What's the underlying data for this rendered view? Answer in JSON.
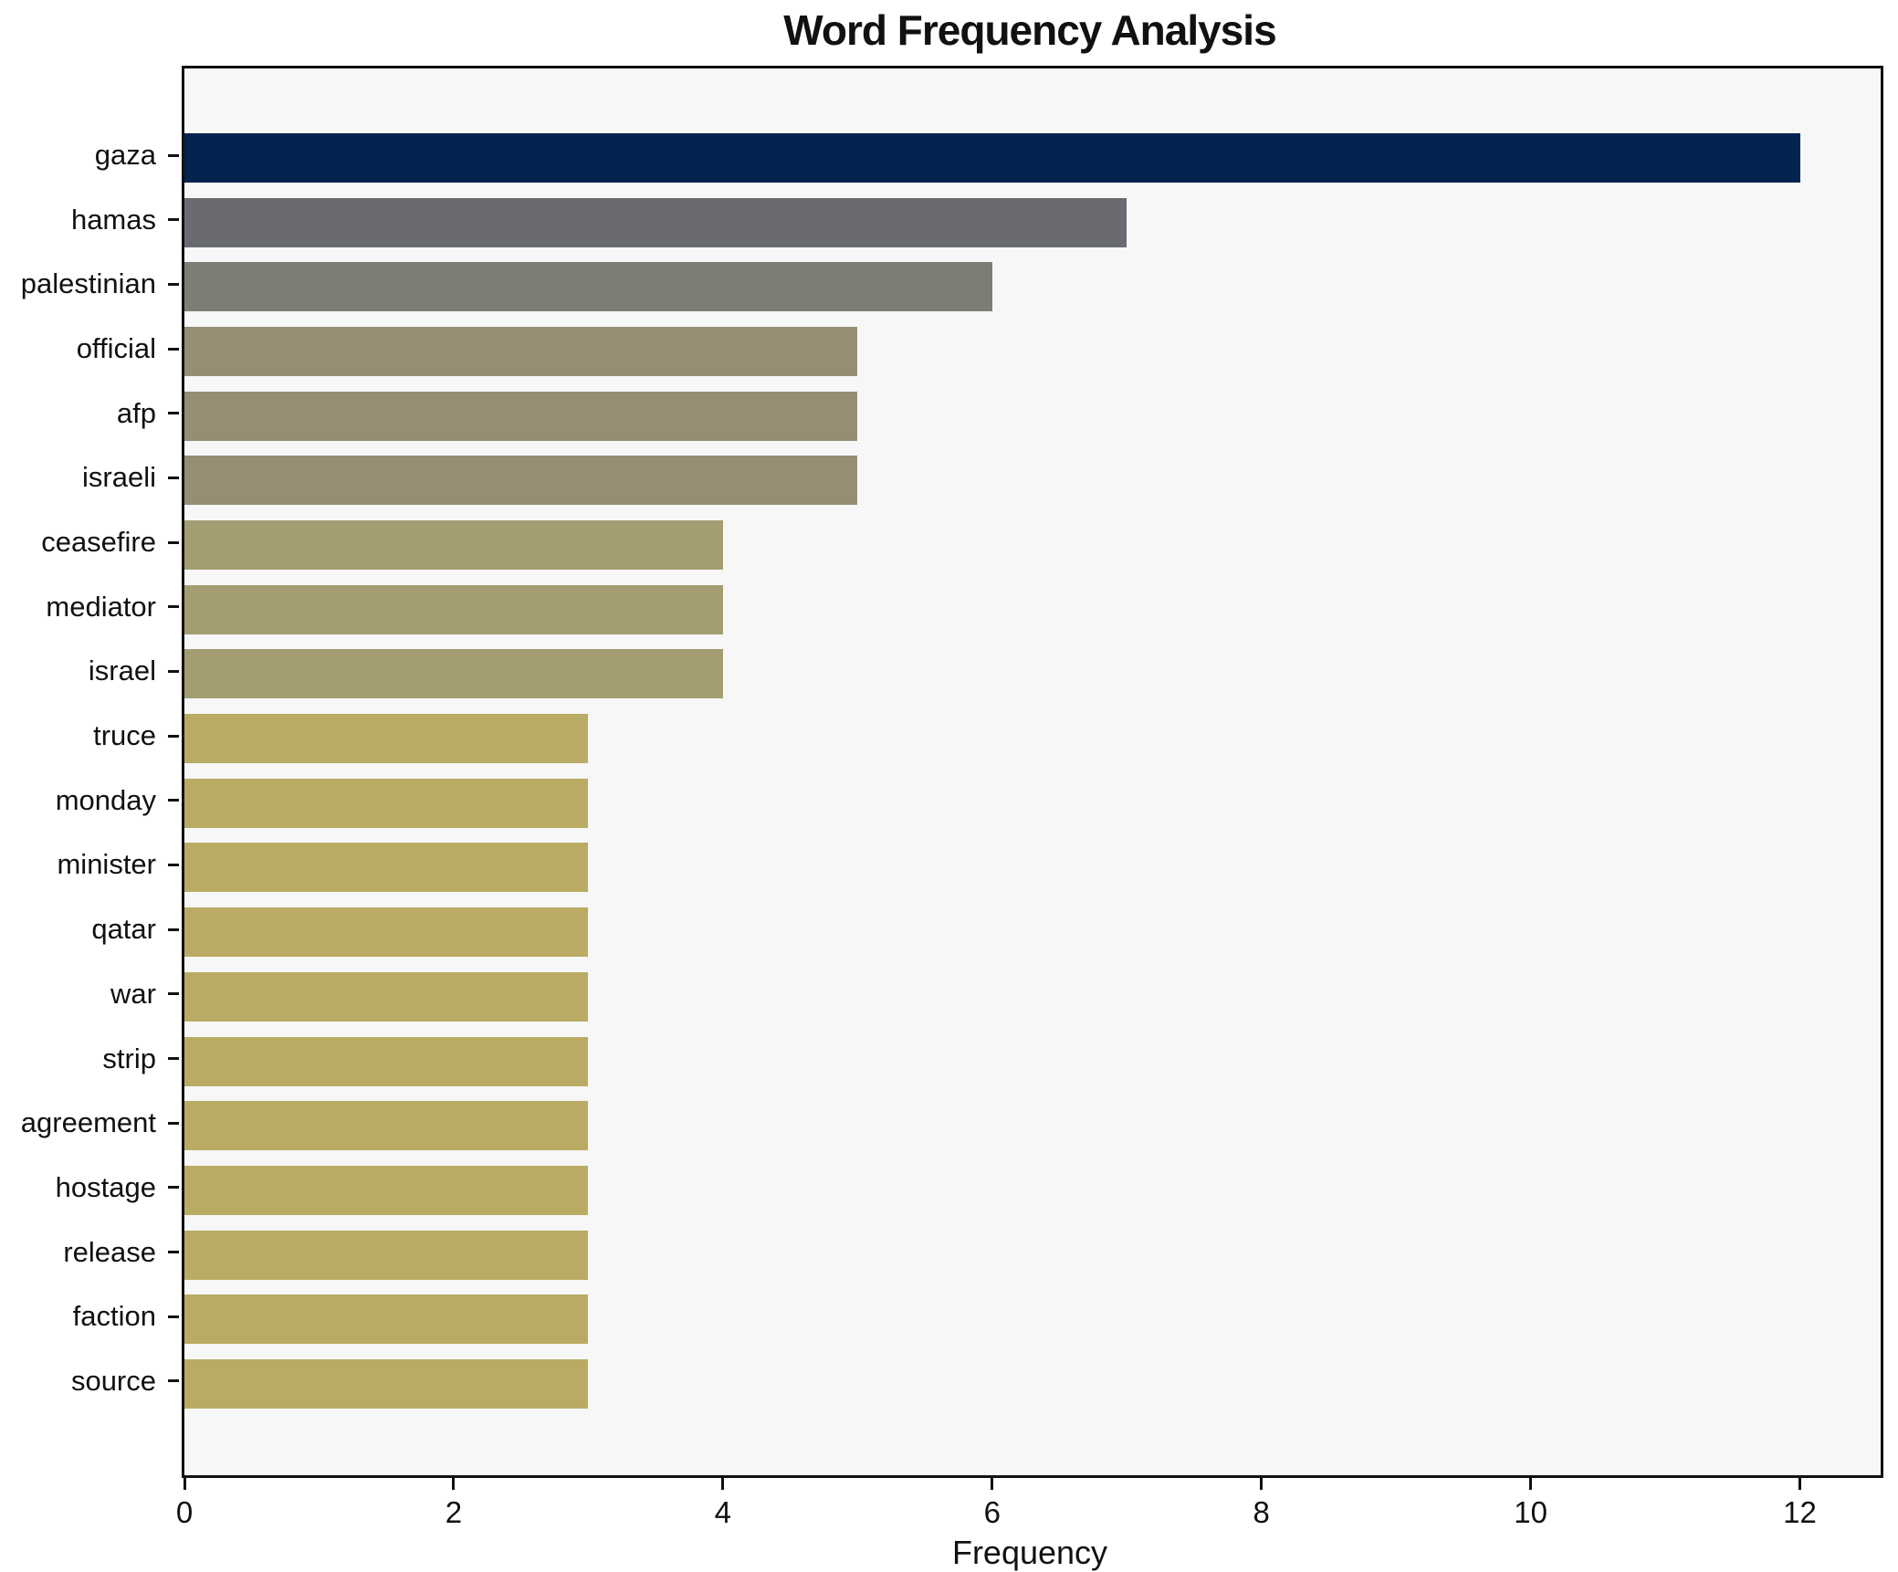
{
  "title": "Word Frequency Analysis",
  "chart_data": {
    "type": "bar",
    "orientation": "horizontal",
    "title": "Word Frequency Analysis",
    "xlabel": "Frequency",
    "ylabel": "",
    "categories": [
      "gaza",
      "hamas",
      "palestinian",
      "official",
      "afp",
      "israeli",
      "ceasefire",
      "mediator",
      "israel",
      "truce",
      "monday",
      "minister",
      "qatar",
      "war",
      "strip",
      "agreement",
      "hostage",
      "release",
      "faction",
      "source"
    ],
    "values": [
      12,
      7,
      6,
      5,
      5,
      5,
      4,
      4,
      4,
      3,
      3,
      3,
      3,
      3,
      3,
      3,
      3,
      3,
      3,
      3
    ],
    "bar_colors": [
      "#04234f",
      "#696b70",
      "#7d7d76",
      "#958e75",
      "#958e75",
      "#958e75",
      "#a49d72",
      "#a49d72",
      "#a49d72",
      "#b9ab63",
      "#b9ab63",
      "#b9ab63",
      "#b9ab63",
      "#b9ab63",
      "#b9ab63",
      "#b9ab63",
      "#b9ab63",
      "#b9ab63",
      "#b9ab63",
      "#b9ab63"
    ],
    "xticks": [
      0,
      2,
      4,
      6,
      8,
      10,
      12
    ],
    "xlim": [
      0,
      12.6
    ],
    "grid": false,
    "legend": "none",
    "plot_background": "#f7f7f7",
    "figure_background": "#ffffff",
    "spine_color": "#111111",
    "text_color": "#111111"
  }
}
